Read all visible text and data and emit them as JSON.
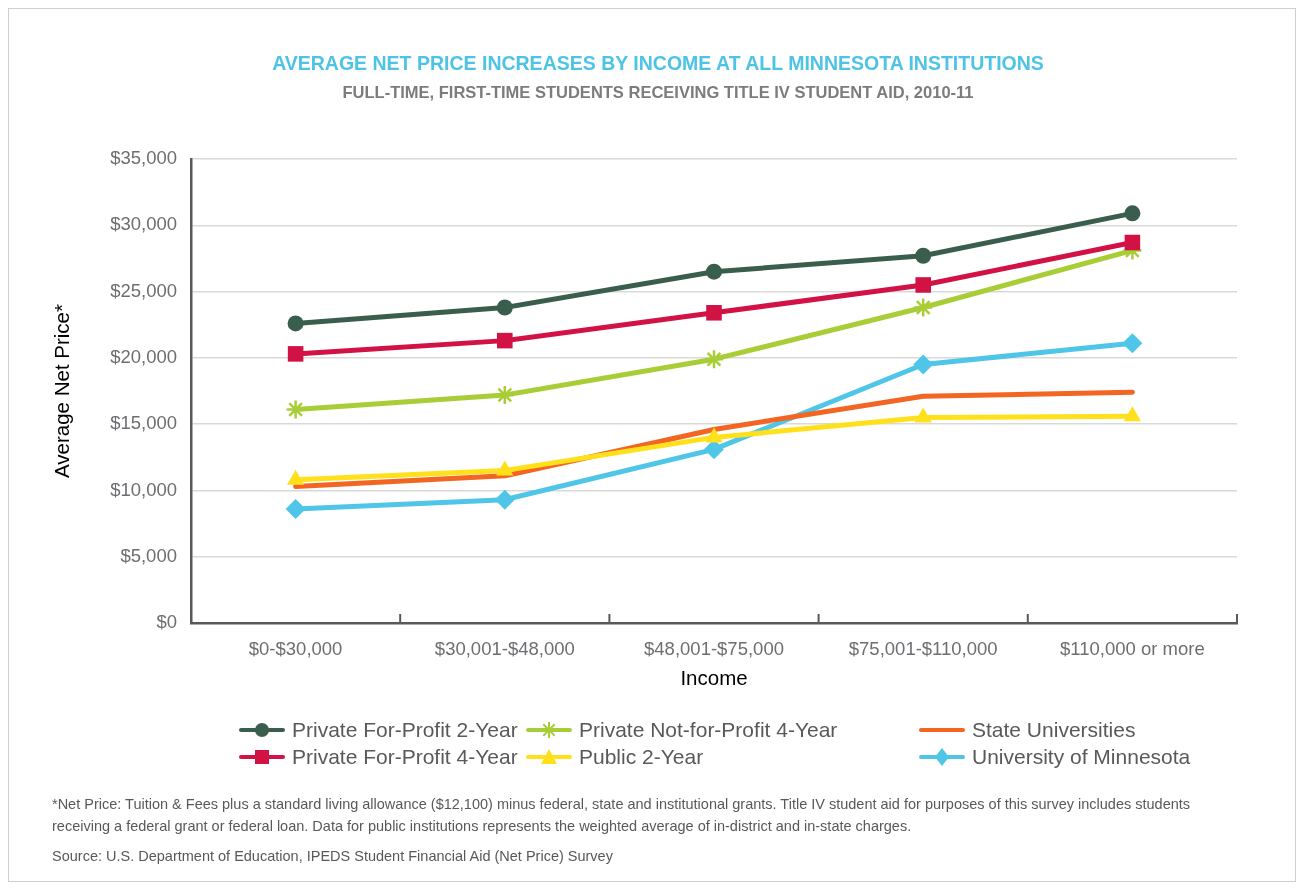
{
  "chart_data": {
    "type": "line",
    "title": "AVERAGE NET PRICE INCREASES BY INCOME AT ALL MINNESOTA INSTITUTIONS",
    "subtitle": "FULL-TIME, FIRST-TIME STUDENTS RECEIVING TITLE IV STUDENT AID, 2010-11",
    "xlabel": "Income",
    "ylabel": "Average Net Price*",
    "categories": [
      "$0-$30,000",
      "$30,001-$48,000",
      "$48,001-$75,000",
      "$75,001-$110,000",
      "$110,000 or more"
    ],
    "series": [
      {
        "name": "Private For-Profit 2-Year",
        "color": "#3a5e4d",
        "marker": "circle",
        "values": [
          22600,
          23800,
          26500,
          27700,
          30900
        ]
      },
      {
        "name": "Private For-Profit 4-Year",
        "color": "#d21245",
        "marker": "square",
        "values": [
          20300,
          21300,
          23400,
          25500,
          28700
        ]
      },
      {
        "name": "Private Not-for-Profit 4-Year",
        "color": "#a9cd37",
        "marker": "cross",
        "values": [
          16100,
          17200,
          19900,
          23800,
          28100
        ]
      },
      {
        "name": "Public 2-Year",
        "color": "#ffe01a",
        "marker": "triangle",
        "values": [
          10800,
          11500,
          14000,
          15500,
          15600
        ]
      },
      {
        "name": "State Universities",
        "color": "#f26522",
        "marker": "none",
        "values": [
          10300,
          11100,
          14600,
          17100,
          17400
        ]
      },
      {
        "name": "University of Minnesota",
        "color": "#4fc6e8",
        "marker": "diamond",
        "values": [
          8600,
          9300,
          13100,
          19500,
          21100
        ]
      }
    ],
    "ylim": [
      0,
      35000
    ],
    "yticks": [
      {
        "value": 0,
        "label": "$0"
      },
      {
        "value": 5000,
        "label": "$5,000"
      },
      {
        "value": 10000,
        "label": "$10,000"
      },
      {
        "value": 15000,
        "label": "$15,000"
      },
      {
        "value": 20000,
        "label": "$20,000"
      },
      {
        "value": 25000,
        "label": "$25,000"
      },
      {
        "value": 30000,
        "label": "$30,000"
      },
      {
        "value": 35000,
        "label": "$35,000"
      }
    ],
    "grid": "y",
    "legend": "bottom",
    "line_style": "solid",
    "annotations": [
      "*Net Price: Tuition & Fees plus a standard living allowance ($12,100) minus federal, state and institutional grants. Title IV student aid for purposes of this survey includes students receiving a federal grant or federal loan. Data for public institutions represents the weighted average of in-district and in-state charges.",
      "Source: U.S. Department of Education, IPEDS Student Financial Aid (Net Price) Survey"
    ]
  }
}
